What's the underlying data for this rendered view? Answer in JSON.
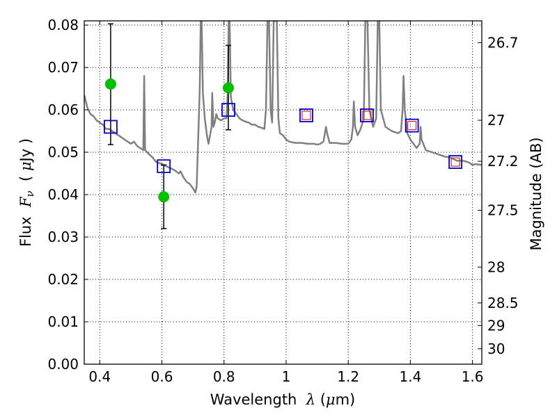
{
  "chart_data": {
    "type": "scatter",
    "xlabel": {
      "prefix": "Wavelength  ",
      "sym": "λ",
      "unit_open": " (",
      "unit_sym": "μ",
      "unit_rest": "m)"
    },
    "ylabel": {
      "prefix": "Flux  ",
      "sym": "F",
      "sub": "ν",
      "unit_open": "  ( ",
      "unit_sym": "μ",
      "unit_rest": "Jy )"
    },
    "y2label": "Magnitude (AB)",
    "xlim": [
      0.35,
      1.63
    ],
    "ylim": [
      0.0,
      0.081
    ],
    "grid": true,
    "x_ticks": [
      {
        "v": 0.4,
        "label": "0.4"
      },
      {
        "v": 0.6,
        "label": "0.6"
      },
      {
        "v": 0.8,
        "label": "0.8"
      },
      {
        "v": 1.0,
        "label": "1"
      },
      {
        "v": 1.2,
        "label": "1.2"
      },
      {
        "v": 1.4,
        "label": "1.4"
      },
      {
        "v": 1.6,
        "label": "1.6"
      }
    ],
    "y_ticks": [
      {
        "v": 0.0,
        "label": "0.00"
      },
      {
        "v": 0.01,
        "label": "0.01"
      },
      {
        "v": 0.02,
        "label": "0.02"
      },
      {
        "v": 0.03,
        "label": "0.03"
      },
      {
        "v": 0.04,
        "label": "0.04"
      },
      {
        "v": 0.05,
        "label": "0.05"
      },
      {
        "v": 0.06,
        "label": "0.06"
      },
      {
        "v": 0.07,
        "label": "0.07"
      },
      {
        "v": 0.08,
        "label": "0.08"
      }
    ],
    "y2_ticks": [
      {
        "mag": 26.7,
        "label": "26.7"
      },
      {
        "mag": 27.0,
        "label": "27"
      },
      {
        "mag": 27.2,
        "label": "27.2"
      },
      {
        "mag": 27.5,
        "label": "27.5"
      },
      {
        "mag": 28.0,
        "label": "28"
      },
      {
        "mag": 28.5,
        "label": "28.5"
      },
      {
        "mag": 29.0,
        "label": "29"
      },
      {
        "mag": 30.0,
        "label": "30"
      }
    ],
    "series": [
      {
        "kind": "line",
        "color": "#808080",
        "points": [
          [
            0.35,
            0.0635
          ],
          [
            0.36,
            0.0605
          ],
          [
            0.37,
            0.059
          ],
          [
            0.38,
            0.0585
          ],
          [
            0.39,
            0.0575
          ],
          [
            0.4,
            0.057
          ],
          [
            0.41,
            0.0565
          ],
          [
            0.42,
            0.0555
          ],
          [
            0.43,
            0.0555
          ],
          [
            0.44,
            0.055
          ],
          [
            0.45,
            0.0545
          ],
          [
            0.46,
            0.054
          ],
          [
            0.47,
            0.0535
          ],
          [
            0.48,
            0.053
          ],
          [
            0.49,
            0.0525
          ],
          [
            0.5,
            0.052
          ],
          [
            0.51,
            0.0525
          ],
          [
            0.52,
            0.0515
          ],
          [
            0.53,
            0.051
          ],
          [
            0.54,
            0.0505
          ],
          [
            0.543,
            0.068
          ],
          [
            0.546,
            0.0505
          ],
          [
            0.555,
            0.0498
          ],
          [
            0.57,
            0.0488
          ],
          [
            0.58,
            0.0478
          ],
          [
            0.6,
            0.0472
          ],
          [
            0.62,
            0.0465
          ],
          [
            0.64,
            0.0458
          ],
          [
            0.655,
            0.045
          ],
          [
            0.66,
            0.0455
          ],
          [
            0.67,
            0.044
          ],
          [
            0.68,
            0.043
          ],
          [
            0.69,
            0.0425
          ],
          [
            0.7,
            0.0415
          ],
          [
            0.708,
            0.0405
          ],
          [
            0.712,
            0.042
          ],
          [
            0.718,
            0.056
          ],
          [
            0.722,
            0.065
          ],
          [
            0.725,
            0.081
          ],
          [
            0.728,
            0.081
          ],
          [
            0.732,
            0.064
          ],
          [
            0.738,
            0.058
          ],
          [
            0.745,
            0.054
          ],
          [
            0.75,
            0.052
          ],
          [
            0.755,
            0.054
          ],
          [
            0.76,
            0.056
          ],
          [
            0.762,
            0.064
          ],
          [
            0.766,
            0.056
          ],
          [
            0.77,
            0.057
          ],
          [
            0.775,
            0.059
          ],
          [
            0.78,
            0.058
          ],
          [
            0.79,
            0.0575
          ],
          [
            0.8,
            0.058
          ],
          [
            0.808,
            0.058
          ],
          [
            0.812,
            0.064
          ],
          [
            0.815,
            0.081
          ],
          [
            0.818,
            0.081
          ],
          [
            0.822,
            0.063
          ],
          [
            0.83,
            0.06
          ],
          [
            0.84,
            0.059
          ],
          [
            0.85,
            0.058
          ],
          [
            0.86,
            0.0575
          ],
          [
            0.87,
            0.0572
          ],
          [
            0.88,
            0.057
          ],
          [
            0.89,
            0.0565
          ],
          [
            0.9,
            0.0565
          ],
          [
            0.91,
            0.056
          ],
          [
            0.92,
            0.0558
          ],
          [
            0.93,
            0.0555
          ],
          [
            0.935,
            0.06
          ],
          [
            0.94,
            0.081
          ],
          [
            0.945,
            0.081
          ],
          [
            0.95,
            0.06
          ],
          [
            0.955,
            0.057
          ],
          [
            0.96,
            0.081
          ],
          [
            0.97,
            0.081
          ],
          [
            0.975,
            0.058
          ],
          [
            0.98,
            0.0545
          ],
          [
            0.99,
            0.054
          ],
          [
            1.0,
            0.053
          ],
          [
            1.01,
            0.0525
          ],
          [
            1.03,
            0.0522
          ],
          [
            1.05,
            0.0522
          ],
          [
            1.07,
            0.052
          ],
          [
            1.09,
            0.052
          ],
          [
            1.1,
            0.0518
          ],
          [
            1.11,
            0.052
          ],
          [
            1.12,
            0.0525
          ],
          [
            1.125,
            0.0545
          ],
          [
            1.128,
            0.056
          ],
          [
            1.132,
            0.0545
          ],
          [
            1.14,
            0.0522
          ],
          [
            1.16,
            0.0522
          ],
          [
            1.18,
            0.052
          ],
          [
            1.2,
            0.052
          ],
          [
            1.21,
            0.053
          ],
          [
            1.215,
            0.056
          ],
          [
            1.218,
            0.062
          ],
          [
            1.222,
            0.056
          ],
          [
            1.23,
            0.054
          ],
          [
            1.24,
            0.0555
          ],
          [
            1.25,
            0.058
          ],
          [
            1.255,
            0.081
          ],
          [
            1.262,
            0.081
          ],
          [
            1.268,
            0.06
          ],
          [
            1.28,
            0.056
          ],
          [
            1.29,
            0.058
          ],
          [
            1.295,
            0.081
          ],
          [
            1.3,
            0.081
          ],
          [
            1.305,
            0.06
          ],
          [
            1.32,
            0.056
          ],
          [
            1.34,
            0.055
          ],
          [
            1.36,
            0.0545
          ],
          [
            1.37,
            0.055
          ],
          [
            1.375,
            0.06
          ],
          [
            1.378,
            0.068
          ],
          [
            1.382,
            0.06
          ],
          [
            1.39,
            0.0545
          ],
          [
            1.4,
            0.053
          ],
          [
            1.41,
            0.052
          ],
          [
            1.42,
            0.051
          ],
          [
            1.43,
            0.052
          ],
          [
            1.433,
            0.056
          ],
          [
            1.436,
            0.053
          ],
          [
            1.45,
            0.0505
          ],
          [
            1.47,
            0.05
          ],
          [
            1.49,
            0.0495
          ],
          [
            1.51,
            0.049
          ],
          [
            1.53,
            0.0487
          ],
          [
            1.55,
            0.048
          ],
          [
            1.57,
            0.048
          ],
          [
            1.58,
            0.0478
          ],
          [
            1.59,
            0.0475
          ],
          [
            1.6,
            0.047
          ],
          [
            1.61,
            0.0472
          ],
          [
            1.63,
            0.047
          ]
        ]
      },
      {
        "kind": "errorbar",
        "color": "#00c000",
        "points": [
          {
            "x": 0.435,
            "y": 0.0661,
            "ylo": 0.0518,
            "yhi": 0.0803
          },
          {
            "x": 0.606,
            "y": 0.0395,
            "ylo": 0.032,
            "yhi": 0.047
          },
          {
            "x": 0.814,
            "y": 0.0652,
            "ylo": 0.0553,
            "yhi": 0.0752
          }
        ]
      },
      {
        "kind": "squares",
        "color": "#0000cc",
        "points": [
          {
            "x": 0.435,
            "y": 0.056
          },
          {
            "x": 0.606,
            "y": 0.0467
          },
          {
            "x": 0.814,
            "y": 0.06
          },
          {
            "x": 1.065,
            "y": 0.0587
          },
          {
            "x": 1.26,
            "y": 0.0587
          },
          {
            "x": 1.405,
            "y": 0.0563
          },
          {
            "x": 1.545,
            "y": 0.0477
          }
        ]
      },
      {
        "kind": "small-squares",
        "color": "#dd2222",
        "points": [
          {
            "x": 1.065,
            "y": 0.0587
          },
          {
            "x": 1.26,
            "y": 0.0587
          },
          {
            "x": 1.405,
            "y": 0.0563
          },
          {
            "x": 1.545,
            "y": 0.0477
          }
        ]
      }
    ]
  }
}
